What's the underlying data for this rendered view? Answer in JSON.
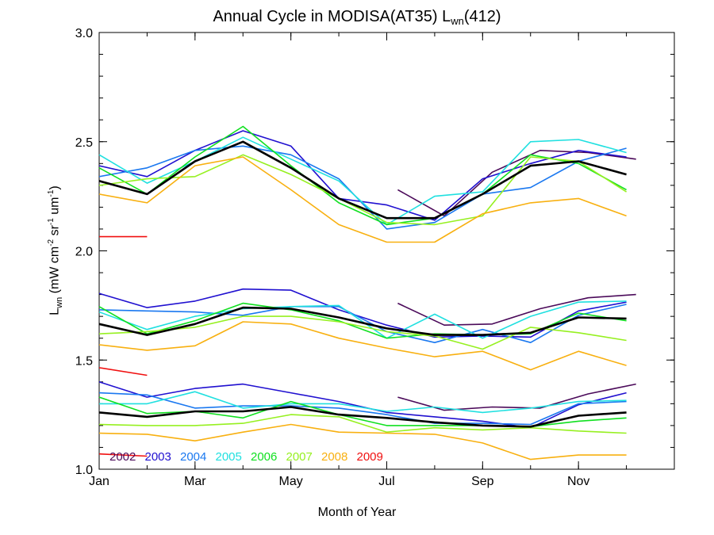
{
  "chart_data": {
    "type": "line",
    "title": {
      "main": "Annual Cycle in MODISA(AT35) L",
      "sub": "wn",
      "suffix": "(412)"
    },
    "ylabel": {
      "prefix": "L",
      "sub": "wn",
      "open": " (mW cm",
      "sup1": "-2",
      "mid1": " sr",
      "sup2": "-1",
      "mid2": " um",
      "sup3": "-1",
      "close": ")"
    },
    "xlabel": "Month of Year",
    "ylim": [
      1.0,
      3.0
    ],
    "xlim": [
      1,
      13
    ],
    "x_ticks": [
      {
        "value": 1,
        "label": "Jan"
      },
      {
        "value": 3,
        "label": "Mar"
      },
      {
        "value": 5,
        "label": "May"
      },
      {
        "value": 7,
        "label": "Jul"
      },
      {
        "value": 9,
        "label": "Sep"
      },
      {
        "value": 11,
        "label": "Nov"
      }
    ],
    "y_ticks": [
      {
        "value": 1.0,
        "label": "1.0"
      },
      {
        "value": 1.5,
        "label": "1.5"
      },
      {
        "value": 2.0,
        "label": "2.0"
      },
      {
        "value": 2.5,
        "label": "2.5"
      },
      {
        "value": 3.0,
        "label": "3.0"
      }
    ],
    "legend": {
      "placement": "bottom-left",
      "entries": [
        {
          "label": "2002",
          "color": "#4b0a5a"
        },
        {
          "label": "2003",
          "color": "#2010d0"
        },
        {
          "label": "2004",
          "color": "#1a78f0"
        },
        {
          "label": "2005",
          "color": "#20e0e0"
        },
        {
          "label": "2006",
          "color": "#10e020"
        },
        {
          "label": "2007",
          "color": "#96f020"
        },
        {
          "label": "2008",
          "color": "#f8b010"
        },
        {
          "label": "2009",
          "color": "#f01010"
        }
      ]
    },
    "series": [
      {
        "name": "2002",
        "color": "#4b0a5a",
        "x": [
          7.23,
          8.2,
          9.2,
          10.2,
          11.2,
          12.2
        ],
        "values": [
          2.28,
          2.16,
          2.36,
          2.46,
          2.45,
          2.42
        ]
      },
      {
        "name": "2002",
        "color": "#4b0a5a",
        "x": [
          7.23,
          8.2,
          9.2,
          10.2,
          11.2,
          12.2
        ],
        "values": [
          1.76,
          1.66,
          1.665,
          1.735,
          1.785,
          1.8
        ]
      },
      {
        "name": "2002",
        "color": "#4b0a5a",
        "x": [
          7.23,
          8.2,
          9.2,
          10.2,
          11.2,
          12.2
        ],
        "values": [
          1.33,
          1.27,
          1.285,
          1.28,
          1.345,
          1.39
        ]
      },
      {
        "name": "2003",
        "color": "#2010d0",
        "x": [
          1,
          2,
          3,
          4,
          5,
          6,
          7,
          8,
          9,
          10,
          11,
          12
        ],
        "values": [
          2.39,
          2.34,
          2.46,
          2.55,
          2.48,
          2.24,
          2.21,
          2.14,
          2.33,
          2.4,
          2.46,
          2.43
        ]
      },
      {
        "name": "2003",
        "color": "#2010d0",
        "x": [
          1,
          2,
          3,
          4,
          5,
          6,
          7,
          8,
          9,
          10,
          11,
          12
        ],
        "values": [
          1.805,
          1.74,
          1.77,
          1.825,
          1.82,
          1.73,
          1.66,
          1.605,
          1.61,
          1.605,
          1.725,
          1.765
        ]
      },
      {
        "name": "2003",
        "color": "#2010d0",
        "x": [
          1,
          2,
          3,
          4,
          5,
          6,
          7,
          8,
          9,
          10,
          11,
          12
        ],
        "values": [
          1.4,
          1.33,
          1.37,
          1.39,
          1.35,
          1.31,
          1.26,
          1.24,
          1.22,
          1.19,
          1.295,
          1.35
        ]
      },
      {
        "name": "2004",
        "color": "#1a78f0",
        "x": [
          1,
          2,
          3,
          4,
          5,
          6,
          7,
          8,
          9,
          10,
          11,
          12
        ],
        "values": [
          2.34,
          2.38,
          2.46,
          2.48,
          2.44,
          2.33,
          2.1,
          2.13,
          2.26,
          2.29,
          2.41,
          2.47
        ]
      },
      {
        "name": "2004",
        "color": "#1a78f0",
        "x": [
          1,
          2,
          3,
          4,
          5,
          6,
          7,
          8,
          9,
          10,
          11,
          12
        ],
        "values": [
          1.73,
          1.725,
          1.72,
          1.705,
          1.745,
          1.745,
          1.63,
          1.58,
          1.64,
          1.58,
          1.705,
          1.755
        ]
      },
      {
        "name": "2004",
        "color": "#1a78f0",
        "x": [
          1,
          2,
          3,
          4,
          5,
          6,
          7,
          8,
          9,
          10,
          11,
          12
        ],
        "values": [
          1.35,
          1.34,
          1.28,
          1.29,
          1.29,
          1.28,
          1.25,
          1.21,
          1.21,
          1.205,
          1.3,
          1.31
        ]
      },
      {
        "name": "2005",
        "color": "#20e0e0",
        "x": [
          1,
          2,
          3,
          4,
          5,
          6,
          7,
          8,
          9,
          10,
          11,
          12
        ],
        "values": [
          2.44,
          2.31,
          2.41,
          2.52,
          2.42,
          2.32,
          2.12,
          2.25,
          2.27,
          2.5,
          2.51,
          2.45
        ]
      },
      {
        "name": "2005",
        "color": "#20e0e0",
        "x": [
          1,
          2,
          3,
          4,
          5,
          6,
          7,
          8,
          9,
          10,
          11,
          12
        ],
        "values": [
          1.72,
          1.64,
          1.7,
          1.735,
          1.745,
          1.75,
          1.6,
          1.71,
          1.6,
          1.7,
          1.765,
          1.77
        ]
      },
      {
        "name": "2005",
        "color": "#20e0e0",
        "x": [
          1,
          2,
          3,
          4,
          5,
          6,
          7,
          8,
          9,
          10,
          11,
          12
        ],
        "values": [
          1.3,
          1.3,
          1.355,
          1.28,
          1.3,
          1.3,
          1.265,
          1.285,
          1.26,
          1.28,
          1.31,
          1.315
        ]
      },
      {
        "name": "2006",
        "color": "#10e020",
        "x": [
          1,
          2,
          3,
          4,
          5,
          6,
          7,
          8,
          9,
          10,
          11,
          12
        ],
        "values": [
          2.38,
          2.26,
          2.43,
          2.57,
          2.39,
          2.22,
          2.12,
          2.15,
          2.26,
          2.44,
          2.4,
          2.28
        ]
      },
      {
        "name": "2006",
        "color": "#10e020",
        "x": [
          1,
          2,
          3,
          4,
          5,
          6,
          7,
          8,
          9,
          10,
          11,
          12
        ],
        "values": [
          1.745,
          1.62,
          1.68,
          1.76,
          1.73,
          1.68,
          1.6,
          1.62,
          1.615,
          1.62,
          1.715,
          1.68
        ]
      },
      {
        "name": "2006",
        "color": "#10e020",
        "x": [
          1,
          2,
          3,
          4,
          5,
          6,
          7,
          8,
          9,
          10,
          11,
          12
        ],
        "values": [
          1.33,
          1.255,
          1.265,
          1.235,
          1.31,
          1.25,
          1.2,
          1.2,
          1.2,
          1.195,
          1.22,
          1.235
        ]
      },
      {
        "name": "2007",
        "color": "#96f020",
        "x": [
          1,
          2,
          3,
          4,
          5,
          6,
          7,
          8,
          9,
          10,
          11,
          12
        ],
        "values": [
          2.3,
          2.33,
          2.34,
          2.44,
          2.35,
          2.24,
          2.13,
          2.12,
          2.16,
          2.43,
          2.41,
          2.27
        ]
      },
      {
        "name": "2007",
        "color": "#96f020",
        "x": [
          1,
          2,
          3,
          4,
          5,
          6,
          7,
          8,
          9,
          10,
          11,
          12
        ],
        "values": [
          1.62,
          1.63,
          1.65,
          1.7,
          1.7,
          1.675,
          1.63,
          1.61,
          1.55,
          1.65,
          1.625,
          1.59
        ]
      },
      {
        "name": "2007",
        "color": "#96f020",
        "x": [
          1,
          2,
          3,
          4,
          5,
          6,
          7,
          8,
          9,
          10,
          11,
          12
        ],
        "values": [
          1.205,
          1.2,
          1.2,
          1.21,
          1.25,
          1.24,
          1.17,
          1.19,
          1.18,
          1.19,
          1.175,
          1.165
        ]
      },
      {
        "name": "2008",
        "color": "#f8b010",
        "x": [
          1,
          2,
          3,
          4,
          5,
          6,
          7,
          8,
          9,
          10,
          11,
          12
        ],
        "values": [
          2.26,
          2.22,
          2.39,
          2.43,
          2.28,
          2.12,
          2.04,
          2.04,
          2.17,
          2.22,
          2.24,
          2.16
        ]
      },
      {
        "name": "2008",
        "color": "#f8b010",
        "x": [
          1,
          2,
          3,
          4,
          5,
          6,
          7,
          8,
          9,
          10,
          11,
          12
        ],
        "values": [
          1.57,
          1.545,
          1.565,
          1.675,
          1.665,
          1.6,
          1.555,
          1.515,
          1.54,
          1.455,
          1.54,
          1.475
        ]
      },
      {
        "name": "2008",
        "color": "#f8b010",
        "x": [
          1,
          2,
          3,
          4,
          5,
          6,
          7,
          8,
          9,
          10,
          11,
          12
        ],
        "values": [
          1.165,
          1.16,
          1.13,
          1.17,
          1.205,
          1.17,
          1.165,
          1.16,
          1.12,
          1.045,
          1.065,
          1.065
        ]
      },
      {
        "name": "2009",
        "color": "#f01010",
        "x": [
          1,
          2
        ],
        "values": [
          2.065,
          2.065
        ]
      },
      {
        "name": "2009",
        "color": "#f01010",
        "x": [
          1,
          2
        ],
        "values": [
          1.465,
          1.43
        ]
      },
      {
        "name": "2009",
        "color": "#f01010",
        "x": [
          1,
          2
        ],
        "values": [
          1.07,
          1.06
        ]
      },
      {
        "name": "mean",
        "color": "#000000",
        "x": [
          1,
          2,
          3,
          4,
          5,
          6,
          7,
          8,
          9,
          10,
          11,
          12
        ],
        "values": [
          2.32,
          2.26,
          2.41,
          2.5,
          2.38,
          2.24,
          2.15,
          2.15,
          2.26,
          2.39,
          2.41,
          2.35
        ]
      },
      {
        "name": "mean",
        "color": "#000000",
        "x": [
          1,
          2,
          3,
          4,
          5,
          6,
          7,
          8,
          9,
          10,
          11,
          12
        ],
        "values": [
          1.665,
          1.615,
          1.665,
          1.74,
          1.735,
          1.695,
          1.645,
          1.615,
          1.615,
          1.625,
          1.695,
          1.69
        ]
      },
      {
        "name": "mean",
        "color": "#000000",
        "x": [
          1,
          2,
          3,
          4,
          5,
          6,
          7,
          8,
          9,
          10,
          11,
          12
        ],
        "values": [
          1.26,
          1.24,
          1.265,
          1.265,
          1.285,
          1.25,
          1.235,
          1.215,
          1.2,
          1.195,
          1.245,
          1.26
        ]
      }
    ]
  }
}
